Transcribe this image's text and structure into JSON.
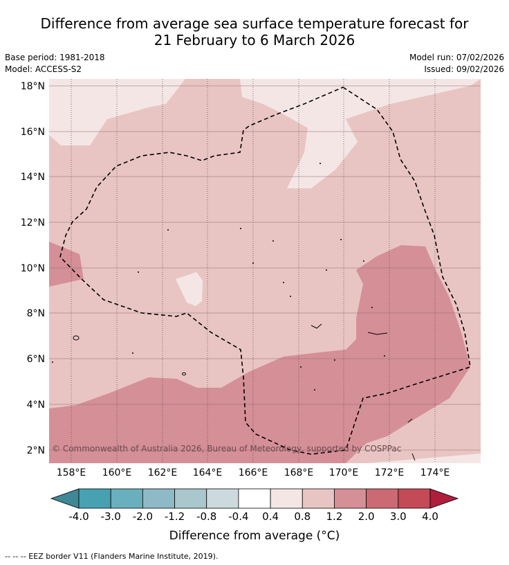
{
  "title_line1": "Difference from average sea surface temperature forecast for",
  "title_line2": "21 February to 6 March 2026",
  "base_period": "Base period: 1981-2018",
  "model": "Model: ACCESS-S2",
  "model_run": "Model run: 07/02/2026",
  "issued": "Issued: 09/02/2026",
  "copyright": "© Commonwealth of Australia 2026, Bureau of Meteorology, supported by COSPPac",
  "lat_labels": [
    "18°N",
    "16°N",
    "14°N",
    "12°N",
    "10°N",
    "8°N",
    "6°N",
    "4°N",
    "2°N"
  ],
  "lon_labels": [
    "158°E",
    "160°E",
    "162°E",
    "164°E",
    "166°E",
    "168°E",
    "170°E",
    "172°E",
    "174°E"
  ],
  "colorbar": {
    "ticks": [
      "-4.0",
      "-3.0",
      "-2.0",
      "-1.2",
      "-0.8",
      "-0.4",
      "0.4",
      "0.8",
      "1.2",
      "2.0",
      "3.0",
      "4.0"
    ],
    "colors": [
      "#3f8896",
      "#48a1b1",
      "#6aafbe",
      "#8dbac6",
      "#a9c7cc",
      "#cddadd",
      "#ffffff",
      "#f5e6e6",
      "#e8c5c3",
      "#d58f97",
      "#cc6a74",
      "#c44a57",
      "#b01e3c"
    ],
    "label": "Difference from average (°C)"
  },
  "footnote": "--  --  -- EEZ border V11 (Flanders Marine Institute, 2019).",
  "colors": {
    "light": "#f5e6e6",
    "mid": "#e8c5c3",
    "dark": "#d58f97"
  }
}
